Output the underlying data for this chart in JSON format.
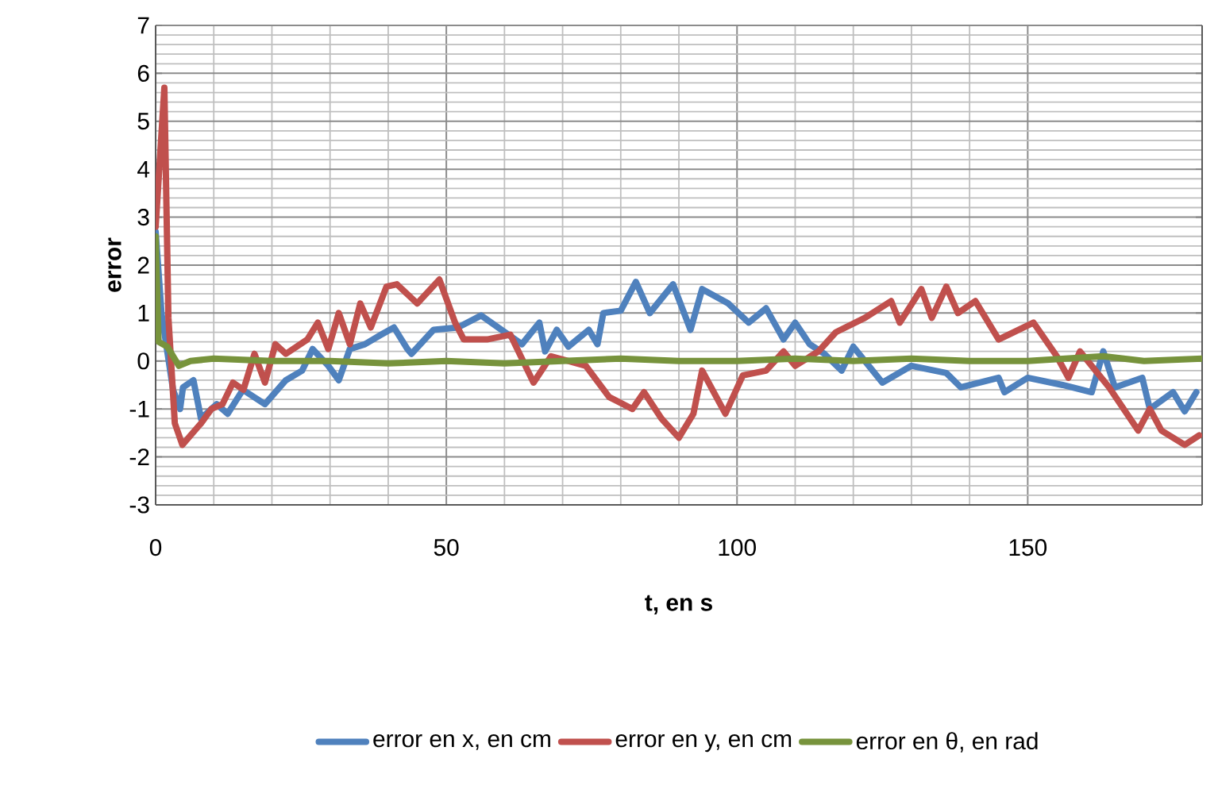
{
  "chart_data": {
    "type": "line",
    "xlabel": "t, en s",
    "ylabel": "error",
    "xlim": [
      0,
      180
    ],
    "xticks": [
      0,
      50,
      100,
      150
    ],
    "ylim": [
      -3,
      7
    ],
    "yticks": [
      -3,
      -2,
      -1,
      0,
      1,
      2,
      3,
      4,
      5,
      6,
      7
    ],
    "grid": true,
    "legend": "bottom",
    "marker": "none",
    "line_style": "solid",
    "series": [
      {
        "name": "error en x, en cm",
        "color": "#4f81bd",
        "x": [
          0,
          1,
          3,
          4.2,
          4.7,
          6.5,
          7.8,
          10.5,
          12.4,
          15,
          18.8,
          22.4,
          25.2,
          27,
          29.7,
          31.5,
          33.4,
          36,
          38.8,
          41,
          43.3,
          44,
          47.8,
          52,
          56,
          63,
          66,
          67,
          69,
          71,
          74.5,
          76,
          77,
          80,
          82.6,
          85,
          89,
          92,
          94,
          98.5,
          102,
          105,
          108,
          110,
          112.5,
          115,
          118,
          120,
          125,
          130,
          136,
          138.5,
          145,
          146,
          150,
          156,
          161,
          163,
          165,
          169.7,
          171,
          175,
          177,
          179
        ],
        "values": [
          2.7,
          1.0,
          -0.6,
          -1.0,
          -0.55,
          -0.4,
          -1.2,
          -0.9,
          -1.1,
          -0.6,
          -0.9,
          -0.4,
          -0.2,
          0.25,
          -0.1,
          -0.4,
          0.25,
          0.35,
          0.55,
          0.7,
          0.25,
          0.15,
          0.65,
          0.7,
          0.95,
          0.35,
          0.8,
          0.2,
          0.65,
          0.3,
          0.65,
          0.35,
          1.0,
          1.05,
          1.65,
          1.0,
          1.6,
          0.65,
          1.5,
          1.2,
          0.8,
          1.1,
          0.45,
          0.8,
          0.35,
          0.15,
          -0.2,
          0.3,
          -0.45,
          -0.1,
          -0.25,
          -0.55,
          -0.35,
          -0.65,
          -0.35,
          -0.5,
          -0.65,
          0.2,
          -0.55,
          -0.35,
          -1.0,
          -0.65,
          -1.05,
          -0.65
        ]
      },
      {
        "name": "error en y, en cm",
        "color": "#c0504d",
        "x": [
          0,
          1.5,
          2.2,
          3.3,
          4.6,
          7.8,
          9.6,
          11.5,
          13.3,
          15.1,
          17,
          18.8,
          20.6,
          22.4,
          26.1,
          27.9,
          29.7,
          31.5,
          33.4,
          35.2,
          37,
          39.7,
          41.5,
          45,
          48.8,
          51.5,
          53,
          57,
          61,
          65,
          68,
          74,
          78,
          82,
          84,
          87,
          90,
          92.5,
          94,
          98,
          101,
          105,
          108,
          110,
          114,
          117,
          122,
          126.5,
          128,
          131.7,
          133.5,
          136,
          138,
          141,
          145,
          151,
          155,
          157,
          159,
          164,
          169,
          171,
          173,
          177,
          179.5
        ],
        "values": [
          2.8,
          5.7,
          0.9,
          -1.3,
          -1.75,
          -1.3,
          -1.0,
          -0.9,
          -0.45,
          -0.6,
          0.15,
          -0.45,
          0.35,
          0.15,
          0.45,
          0.8,
          0.25,
          1.0,
          0.35,
          1.2,
          0.7,
          1.55,
          1.6,
          1.2,
          1.7,
          0.8,
          0.45,
          0.45,
          0.55,
          -0.45,
          0.1,
          -0.1,
          -0.75,
          -1.0,
          -0.65,
          -1.2,
          -1.6,
          -1.1,
          -0.2,
          -1.1,
          -0.3,
          -0.2,
          0.2,
          -0.1,
          0.2,
          0.6,
          0.9,
          1.25,
          0.8,
          1.5,
          0.9,
          1.55,
          1.0,
          1.25,
          0.45,
          0.8,
          0.1,
          -0.35,
          0.2,
          -0.55,
          -1.45,
          -1.0,
          -1.45,
          -1.75,
          -1.55
        ]
      },
      {
        "name": "error en θ, en rad",
        "color": "#77933c",
        "x": [
          0,
          0.5,
          2,
          4,
          6,
          10,
          20,
          30,
          40,
          50,
          60,
          70,
          80,
          90,
          100,
          110,
          120,
          130,
          140,
          150,
          163,
          170,
          180
        ],
        "values": [
          2.6,
          0.4,
          0.3,
          -0.1,
          0.0,
          0.05,
          0.0,
          0.0,
          -0.05,
          0.0,
          -0.05,
          0.0,
          0.05,
          0.0,
          0.0,
          0.05,
          0.0,
          0.05,
          0.0,
          0.0,
          0.1,
          0.0,
          0.05
        ]
      }
    ]
  }
}
